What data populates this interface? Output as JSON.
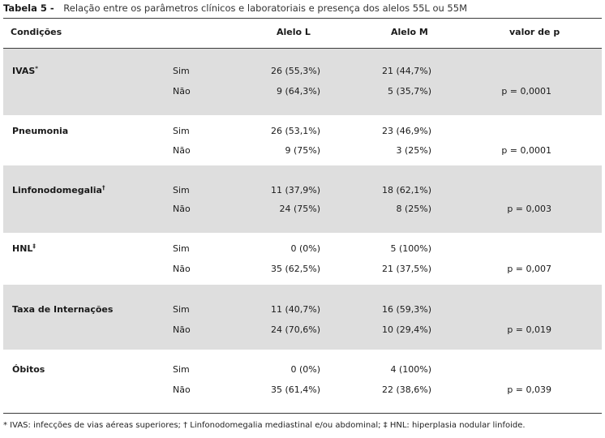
{
  "caption": {
    "label": "Tabela 5 -",
    "text": "Relação entre os parâmetros clínicos e laboratoriais e presença dos alelos 55L ou 55M"
  },
  "header": {
    "condicoes": "Condições",
    "alelo_l": "Alelo L",
    "alelo_m": "Alelo M",
    "valor_p": "valor de p"
  },
  "rows": [
    {
      "condition": "IVAS",
      "mark": "*",
      "sim": {
        "label": "Sim",
        "alelo_l": "26 (55,3%)",
        "alelo_m": "21 (44,7%)"
      },
      "nao": {
        "label": "Não",
        "alelo_l": "9 (64,3%)",
        "alelo_m": "5 (35,7%)"
      },
      "p": "p = 0,0001"
    },
    {
      "condition": "Pneumonia",
      "mark": "",
      "sim": {
        "label": "Sim",
        "alelo_l": "26 (53,1%)",
        "alelo_m": "23 (46,9%)"
      },
      "nao": {
        "label": "Não",
        "alelo_l": "9 (75%)",
        "alelo_m": "3 (25%)"
      },
      "p": "p = 0,0001"
    },
    {
      "condition": "Linfonodomegalia",
      "mark": "†",
      "sim": {
        "label": "Sim",
        "alelo_l": "11 (37,9%)",
        "alelo_m": "18 (62,1%)"
      },
      "nao": {
        "label": "Não",
        "alelo_l": "24 (75%)",
        "alelo_m": "8 (25%)"
      },
      "p": "p = 0,003"
    },
    {
      "condition": "HNL",
      "mark": "‡",
      "sim": {
        "label": "Sim",
        "alelo_l": "0 (0%)",
        "alelo_m": "5 (100%)"
      },
      "nao": {
        "label": "Não",
        "alelo_l": "35 (62,5%)",
        "alelo_m": "21 (37,5%)"
      },
      "p": "p = 0,007"
    },
    {
      "condition": "Taxa de Internações",
      "mark": "",
      "sim": {
        "label": "Sim",
        "alelo_l": "11 (40,7%)",
        "alelo_m": "16 (59,3%)"
      },
      "nao": {
        "label": "Não",
        "alelo_l": "24 (70,6%)",
        "alelo_m": "10 (29,4%)"
      },
      "p": "p = 0,019"
    },
    {
      "condition": "Óbitos",
      "mark": "",
      "sim": {
        "label": "Sim",
        "alelo_l": "0 (0%)",
        "alelo_m": "4 (100%)"
      },
      "nao": {
        "label": "Não",
        "alelo_l": "35 (61,4%)",
        "alelo_m": "22 (38,6%)"
      },
      "p": "p = 0,039"
    }
  ],
  "footnote": "* IVAS: infecções de vias aéreas superiores; † Linfonodomegalia mediastinal e/ou abdominal;  ‡ HNL: hiperplasia nodular linfoide."
}
